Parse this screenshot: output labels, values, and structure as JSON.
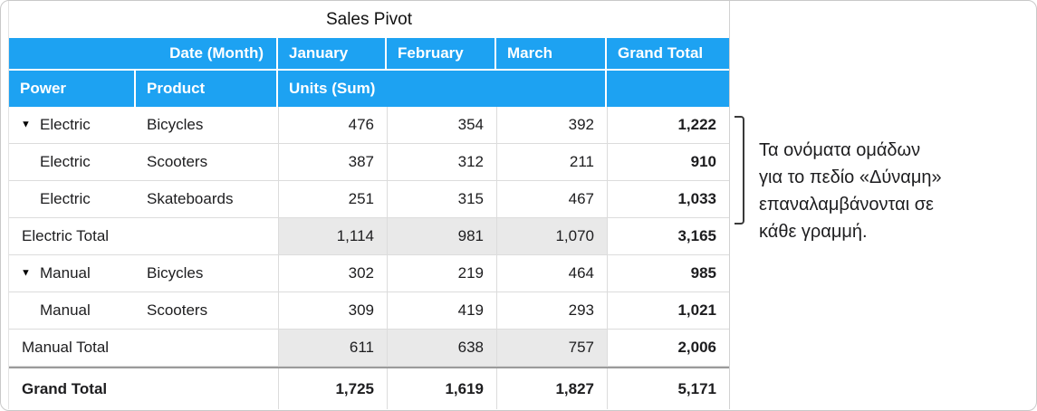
{
  "title": "Sales Pivot",
  "colors": {
    "header_blue": "#1da2f2",
    "subtotal_gray": "#e9e9e9"
  },
  "table": {
    "header_row1": {
      "date_label": "Date (Month)",
      "months": [
        "January",
        "February",
        "March"
      ],
      "grand_total": "Grand Total"
    },
    "header_row2": {
      "power": "Power",
      "product": "Product",
      "units": "Units (Sum)"
    },
    "rows": [
      {
        "type": "data",
        "disclosure": true,
        "power": "Electric",
        "product": "Bicycles",
        "values": [
          "476",
          "354",
          "392"
        ],
        "total": "1,222"
      },
      {
        "type": "data",
        "disclosure": false,
        "power": "Electric",
        "product": "Scooters",
        "values": [
          "387",
          "312",
          "211"
        ],
        "total": "910"
      },
      {
        "type": "data",
        "disclosure": false,
        "power": "Electric",
        "product": "Skateboards",
        "values": [
          "251",
          "315",
          "467"
        ],
        "total": "1,033"
      },
      {
        "type": "subtotal",
        "label": "Electric Total",
        "values": [
          "1,114",
          "981",
          "1,070"
        ],
        "total": "3,165"
      },
      {
        "type": "data",
        "disclosure": true,
        "power": "Manual",
        "product": "Bicycles",
        "values": [
          "302",
          "219",
          "464"
        ],
        "total": "985"
      },
      {
        "type": "data",
        "disclosure": false,
        "power": "Manual",
        "product": "Scooters",
        "values": [
          "309",
          "419",
          "293"
        ],
        "total": "1,021"
      },
      {
        "type": "subtotal",
        "label": "Manual Total",
        "values": [
          "611",
          "638",
          "757"
        ],
        "total": "2,006"
      },
      {
        "type": "grandtotal",
        "label": "Grand Total",
        "values": [
          "1,725",
          "1,619",
          "1,827"
        ],
        "total": "5,171"
      }
    ]
  },
  "annotation": {
    "lines": [
      "Τα ονόματα ομάδων",
      "για το πεδίο «Δύναμη»",
      "επαναλαμβάνονται σε",
      "κάθε γραμμή."
    ]
  }
}
